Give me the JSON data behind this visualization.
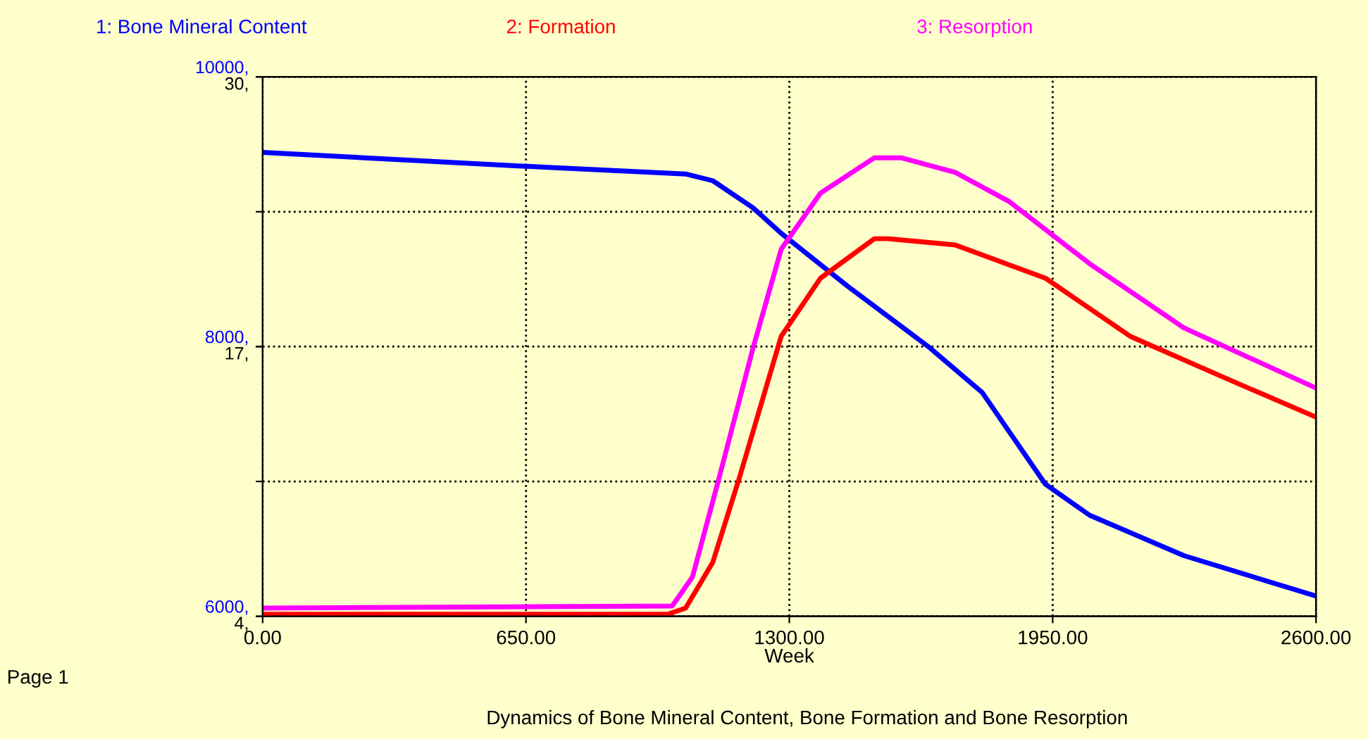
{
  "chart_data": {
    "type": "line",
    "title": "Dynamics of Bone Mineral Content, Bone Formation and Bone Resorption",
    "xlabel": "Week",
    "xlim": [
      0,
      2600
    ],
    "xticks": [
      {
        "value": 0,
        "label": "0.00"
      },
      {
        "value": 650,
        "label": "650.00"
      },
      {
        "value": 1300,
        "label": "1300.00"
      },
      {
        "value": 1950,
        "label": "1950.00"
      },
      {
        "value": 2600,
        "label": "2600.00"
      }
    ],
    "ylim": [
      6000,
      10000
    ],
    "yticks": [
      {
        "value": 6000,
        "label": "6000,"
      },
      {
        "value": 7000,
        "label": null
      },
      {
        "value": 8000,
        "label": "8000,"
      },
      {
        "value": 9000,
        "label": null
      },
      {
        "value": 10000,
        "label": "10000,"
      }
    ],
    "y2lim": [
      4,
      30
    ],
    "y2ticks": [
      {
        "value": 4,
        "label": "4,"
      },
      {
        "value": 17,
        "label": "17,"
      },
      {
        "value": 30,
        "label": "30,"
      }
    ],
    "grid": true,
    "legend": "top",
    "line_style": "solid",
    "annotations": [
      "Page 1"
    ],
    "series": [
      {
        "name": "1: Bone Mineral Content",
        "color": "#0000ff",
        "x": [
          0,
          630,
          1044,
          1111,
          1210,
          1280,
          1443,
          1643,
          1776,
          1932,
          2041,
          2274,
          2600
        ],
        "values": [
          9440,
          9340,
          9280,
          9230,
          9030,
          8840,
          8450,
          8000,
          7660,
          6980,
          6750,
          6450,
          6150
        ]
      },
      {
        "name": "2: Formation",
        "color": "#ff0000",
        "axis": "y2",
        "x": [
          0,
          1000,
          1044,
          1111,
          1177,
          1280,
          1377,
          1510,
          1543,
          1709,
          1932,
          2141,
          2374,
          2600
        ],
        "values": [
          4.1,
          4.1,
          4.4,
          6.6,
          10.7,
          17.5,
          20.3,
          22.2,
          22.2,
          21.9,
          20.3,
          17.5,
          15.5,
          13.6
        ]
      },
      {
        "name": "3: Resorption",
        "color": "#ff00ff",
        "axis": "y2",
        "x": [
          0,
          1011,
          1061,
          1127,
          1210,
          1280,
          1377,
          1510,
          1576,
          1709,
          1842,
          2041,
          2274,
          2600
        ],
        "values": [
          4.4,
          4.5,
          5.9,
          10.7,
          16.9,
          21.7,
          24.4,
          26.1,
          26.1,
          25.4,
          24.0,
          21.0,
          17.9,
          15.0
        ]
      }
    ]
  }
}
